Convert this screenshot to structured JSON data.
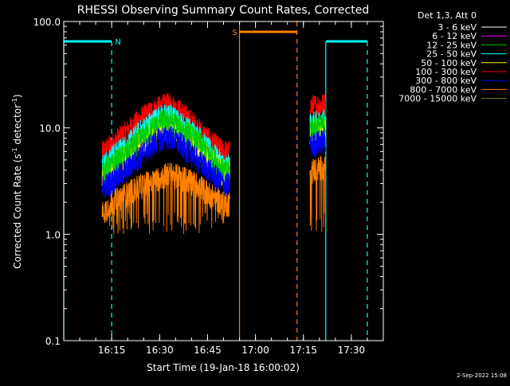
{
  "chart_data": {
    "type": "line",
    "title": "RHESSI Observing Summary Count Rates, Corrected",
    "xlabel": "Start Time (19-Jan-18 16:00:02)",
    "ylabel_prefix": "Corrected Count Rate (s",
    "ylabel_exp1": "-1",
    "ylabel_mid": " detector",
    "ylabel_exp2": "-1",
    "ylabel_suffix": ")",
    "y_scale": "log",
    "ylim": [
      0.1,
      100
    ],
    "xlim_minutes": [
      0,
      100
    ],
    "x_ticks": [
      {
        "label": "16:15",
        "min": 15
      },
      {
        "label": "16:30",
        "min": 30
      },
      {
        "label": "16:45",
        "min": 45
      },
      {
        "label": "17:00",
        "min": 60
      },
      {
        "label": "17:15",
        "min": 75
      },
      {
        "label": "17:30",
        "min": 90
      }
    ],
    "y_ticks": [
      {
        "label": "0.1",
        "value": 0.1
      },
      {
        "label": "1.0",
        "value": 1
      },
      {
        "label": "10.0",
        "value": 10
      },
      {
        "label": "100.0",
        "value": 100
      }
    ],
    "legend_header": "Det 1,3, Att 0",
    "legend_position": "top-right",
    "series": [
      {
        "name": "3 - 6 keV",
        "color": "#ffffff",
        "values": []
      },
      {
        "name": "6 - 12 keV",
        "color": "#ff00ff",
        "values": []
      },
      {
        "name": "12 - 25 keV",
        "color": "#00cc00",
        "values": [
          [
            12,
            4
          ],
          [
            15,
            4.5
          ],
          [
            20,
            6
          ],
          [
            25,
            8.5
          ],
          [
            30,
            11.5
          ],
          [
            33,
            12
          ],
          [
            37,
            10
          ],
          [
            42,
            7.5
          ],
          [
            45,
            6
          ],
          [
            50,
            4
          ],
          [
            52,
            4
          ],
          [
            77,
            10
          ],
          [
            82,
            11
          ]
        ]
      },
      {
        "name": "25 - 50 keV",
        "color": "#00ffff",
        "values": [
          [
            12,
            4.5
          ],
          [
            15,
            5.5
          ],
          [
            20,
            7
          ],
          [
            25,
            10
          ],
          [
            30,
            13
          ],
          [
            33,
            13.5
          ],
          [
            37,
            11
          ],
          [
            42,
            8.5
          ],
          [
            45,
            6.5
          ],
          [
            50,
            4.5
          ],
          [
            52,
            4.5
          ],
          [
            77,
            11
          ],
          [
            82,
            12
          ]
        ]
      },
      {
        "name": "50 - 100 keV",
        "color": "#ffff00",
        "values": [
          [
            12,
            3.5
          ],
          [
            15,
            4
          ],
          [
            20,
            5.5
          ],
          [
            25,
            7.5
          ],
          [
            30,
            10
          ],
          [
            33,
            10.5
          ],
          [
            37,
            9
          ],
          [
            42,
            6.5
          ],
          [
            45,
            5.5
          ],
          [
            50,
            3.8
          ],
          [
            52,
            3.8
          ],
          [
            77,
            9
          ],
          [
            82,
            10
          ]
        ]
      },
      {
        "name": "100 - 300 keV",
        "color": "#ff0000",
        "values": [
          [
            12,
            6
          ],
          [
            15,
            7
          ],
          [
            20,
            9.5
          ],
          [
            25,
            13
          ],
          [
            30,
            16
          ],
          [
            33,
            17
          ],
          [
            37,
            14
          ],
          [
            42,
            10
          ],
          [
            45,
            8
          ],
          [
            50,
            6
          ],
          [
            52,
            6
          ],
          [
            77,
            16
          ],
          [
            82,
            17
          ]
        ]
      },
      {
        "name": "300 - 800 keV",
        "color": "#0000ff",
        "values": [
          [
            12,
            2.8
          ],
          [
            15,
            3.2
          ],
          [
            20,
            4.2
          ],
          [
            25,
            6
          ],
          [
            30,
            8
          ],
          [
            33,
            8.5
          ],
          [
            37,
            7
          ],
          [
            42,
            5
          ],
          [
            45,
            4.2
          ],
          [
            50,
            3
          ],
          [
            52,
            3
          ],
          [
            77,
            7
          ],
          [
            82,
            8
          ]
        ]
      },
      {
        "name": "800 - 7000 keV",
        "color": "#ff8000",
        "values": [
          [
            12,
            1.6
          ],
          [
            15,
            2
          ],
          [
            20,
            2.5
          ],
          [
            25,
            3
          ],
          [
            30,
            3.5
          ],
          [
            33,
            3.8
          ],
          [
            37,
            3.5
          ],
          [
            42,
            3
          ],
          [
            45,
            2.5
          ],
          [
            50,
            2
          ],
          [
            52,
            2
          ],
          [
            77,
            4
          ],
          [
            82,
            4.5
          ]
        ]
      },
      {
        "name": "7000 - 15000 keV",
        "color": "#808000",
        "values": []
      }
    ],
    "annotations": [
      {
        "label": "N",
        "color": "#00ffff",
        "segments": [
          [
            0,
            15
          ],
          [
            82,
            95
          ]
        ],
        "markers": [
          0,
          15,
          82,
          95
        ]
      },
      {
        "label": "S",
        "color": "#ff8000",
        "segments": [
          [
            55,
            73
          ]
        ],
        "markers": [
          55,
          73
        ]
      }
    ],
    "date_stamp": "2-Sep-2022 15:08"
  }
}
